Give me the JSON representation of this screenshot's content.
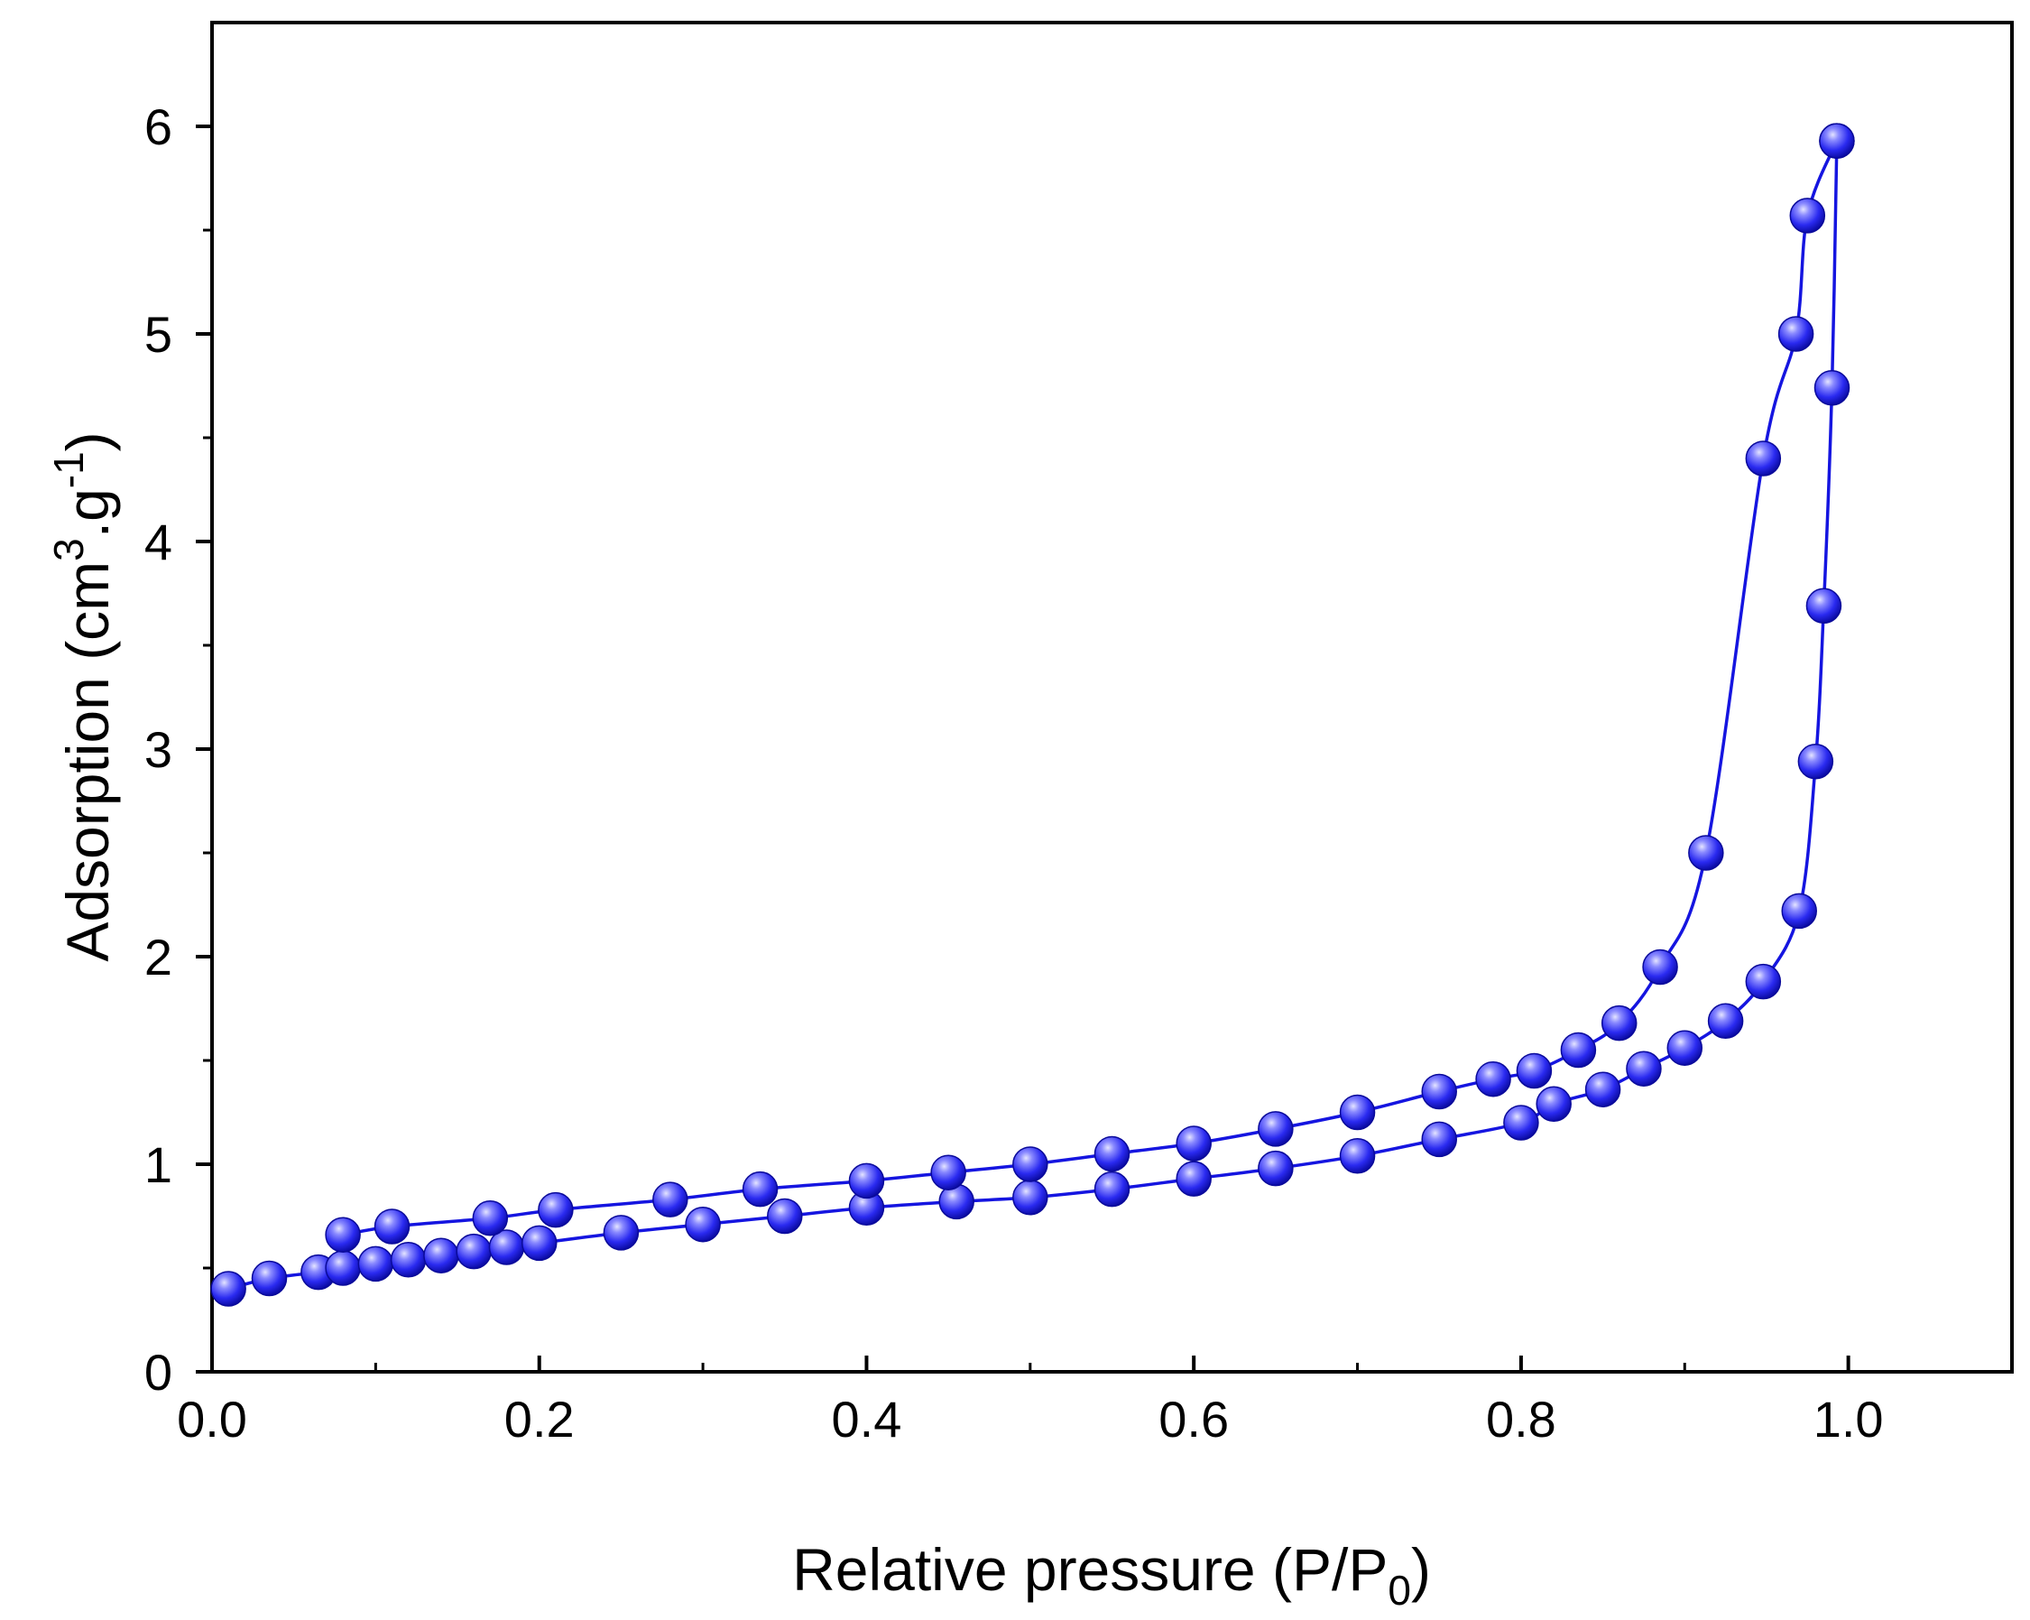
{
  "chart_data": {
    "type": "scatter",
    "title": "",
    "xlabel": "Relative pressure (P/P0)",
    "xlabel_parts": {
      "main": "Relative pressure (P/P",
      "sub": "0",
      "close": ")"
    },
    "ylabel": "Adsorption (cm3.g-1)",
    "ylabel_parts": {
      "main": "Adsorption (cm",
      "sup1": "3",
      "mid": ".g",
      "sup2": "-1",
      "close": ")"
    },
    "xlim": [
      0.0,
      1.1
    ],
    "ylim": [
      0,
      6.5
    ],
    "x_ticks": [
      0.0,
      0.2,
      0.4,
      0.6,
      0.8,
      1.0
    ],
    "x_tick_labels": [
      "0.0",
      "0.2",
      "0.4",
      "0.6",
      "0.8",
      "1.0"
    ],
    "x_minor_ticks": [
      0.1,
      0.3,
      0.5,
      0.7,
      0.9
    ],
    "y_ticks": [
      0,
      1,
      2,
      3,
      4,
      5,
      6
    ],
    "y_tick_labels": [
      "0",
      "1",
      "2",
      "3",
      "4",
      "5",
      "6"
    ],
    "y_minor_ticks": [
      0.5,
      1.5,
      2.5,
      3.5,
      4.5,
      5.5
    ],
    "grid": false,
    "legend": "none",
    "colors": {
      "series": "#1515e0",
      "marker_fill": "#2a2af0",
      "marker_highlight": "#d8d8ff",
      "axis": "#000000"
    },
    "series": [
      {
        "name": "adsorption",
        "x": [
          0.01,
          0.035,
          0.065,
          0.08,
          0.1,
          0.12,
          0.14,
          0.16,
          0.18,
          0.2,
          0.25,
          0.3,
          0.35,
          0.4,
          0.455,
          0.5,
          0.55,
          0.6,
          0.65,
          0.7,
          0.75,
          0.8,
          0.82,
          0.85,
          0.875,
          0.9,
          0.925,
          0.948,
          0.97,
          0.98,
          0.985,
          0.99,
          0.993
        ],
        "y": [
          0.4,
          0.45,
          0.48,
          0.5,
          0.52,
          0.54,
          0.56,
          0.58,
          0.6,
          0.62,
          0.67,
          0.71,
          0.75,
          0.79,
          0.82,
          0.84,
          0.88,
          0.93,
          0.98,
          1.04,
          1.12,
          1.2,
          1.29,
          1.36,
          1.46,
          1.56,
          1.69,
          1.88,
          2.22,
          2.94,
          3.69,
          4.74,
          5.93
        ]
      },
      {
        "name": "desorption",
        "x": [
          0.993,
          0.975,
          0.968,
          0.948,
          0.913,
          0.885,
          0.86,
          0.835,
          0.808,
          0.783,
          0.75,
          0.7,
          0.65,
          0.6,
          0.55,
          0.5,
          0.45,
          0.4,
          0.335,
          0.28,
          0.21,
          0.17,
          0.11,
          0.08
        ],
        "y": [
          5.93,
          5.57,
          5.0,
          4.4,
          2.5,
          1.95,
          1.68,
          1.55,
          1.45,
          1.41,
          1.35,
          1.25,
          1.17,
          1.1,
          1.05,
          1.0,
          0.96,
          0.92,
          0.88,
          0.83,
          0.78,
          0.74,
          0.7,
          0.66
        ]
      }
    ]
  }
}
